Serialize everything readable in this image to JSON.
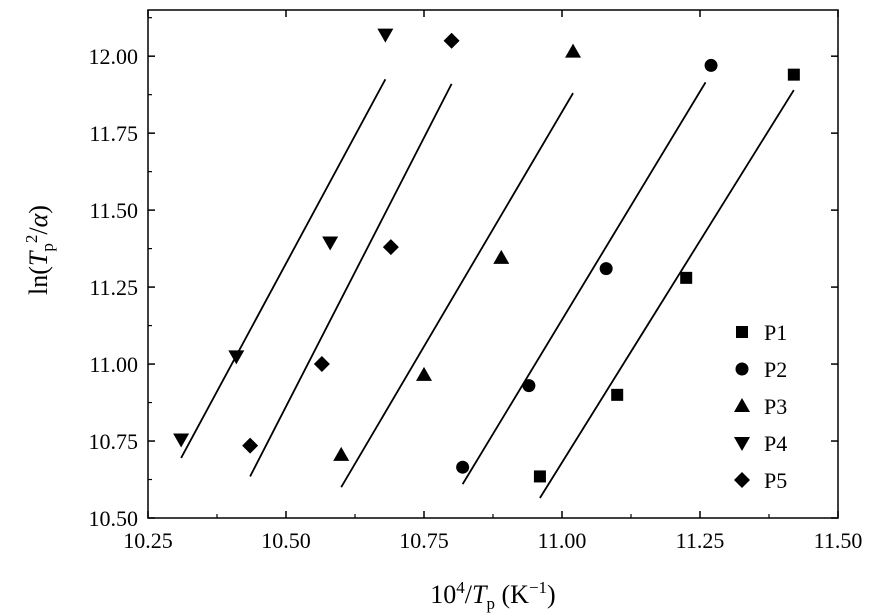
{
  "chart_data": {
    "type": "scatter",
    "xlabel": {
      "base": "10",
      "sup": "4",
      "slash": "/",
      "var": "T",
      "sub": "p",
      "unit_open": " (K",
      "unit_sup": "−1",
      "unit_close": ")"
    },
    "ylabel": {
      "fn": "ln(",
      "var": "T",
      "sub": "p",
      "sup": "2",
      "slash": "/",
      "alpha": "α",
      "close": ")"
    },
    "xlim": [
      10.25,
      11.5
    ],
    "ylim": [
      10.5,
      12.15
    ],
    "xticks": [
      "10.25",
      "10.50",
      "10.75",
      "11.00",
      "11.25",
      "11.50"
    ],
    "yticks": [
      "10.50",
      "10.75",
      "11.00",
      "11.25",
      "11.50",
      "11.75",
      "12.00"
    ],
    "legend_position": "bottom-right",
    "series": [
      {
        "name": "P1",
        "marker": "square",
        "points": [
          [
            10.96,
            10.635
          ],
          [
            11.1,
            10.9
          ],
          [
            11.225,
            11.28
          ],
          [
            11.42,
            11.94
          ]
        ],
        "fit": [
          [
            10.96,
            10.565
          ],
          [
            11.42,
            11.89
          ]
        ]
      },
      {
        "name": "P2",
        "marker": "circle",
        "points": [
          [
            10.82,
            10.665
          ],
          [
            10.94,
            10.93
          ],
          [
            11.08,
            11.31
          ],
          [
            11.27,
            11.97
          ]
        ],
        "fit": [
          [
            10.82,
            10.61
          ],
          [
            11.26,
            11.915
          ]
        ]
      },
      {
        "name": "P3",
        "marker": "triangle-up",
        "points": [
          [
            10.6,
            10.705
          ],
          [
            10.75,
            10.965
          ],
          [
            10.89,
            11.345
          ],
          [
            11.02,
            12.015
          ]
        ],
        "fit": [
          [
            10.6,
            10.6
          ],
          [
            11.02,
            11.88
          ]
        ]
      },
      {
        "name": "P4",
        "marker": "triangle-down",
        "points": [
          [
            10.31,
            10.755
          ],
          [
            10.41,
            11.025
          ],
          [
            10.58,
            11.395
          ],
          [
            10.68,
            12.07
          ]
        ],
        "fit": [
          [
            10.31,
            10.695
          ],
          [
            10.68,
            11.925
          ]
        ]
      },
      {
        "name": "P5",
        "marker": "diamond",
        "points": [
          [
            10.435,
            10.735
          ],
          [
            10.565,
            11.0
          ],
          [
            10.69,
            11.38
          ],
          [
            10.8,
            12.05
          ]
        ],
        "fit": [
          [
            10.435,
            10.635
          ],
          [
            10.8,
            11.91
          ]
        ]
      }
    ]
  }
}
